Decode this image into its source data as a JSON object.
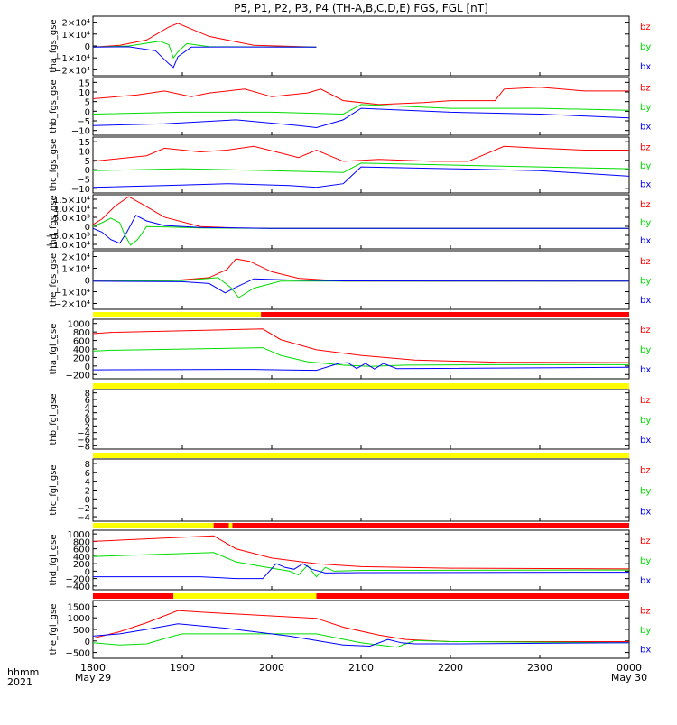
{
  "title": "P5, P1, P2, P3, P4 (TH-A,B,C,D,E) FGS, FGL [nT]",
  "colors": {
    "bz": "#ff0000",
    "by": "#00dd00",
    "bx": "#0000ff",
    "axis": "#000000",
    "bar_yellow": "#ffff00",
    "bar_red": "#ff0000"
  },
  "footer": {
    "hhmm": "hhmm",
    "year": "2021"
  },
  "chart_data": {
    "type": "line",
    "x_axis": {
      "label": "hhmm",
      "tick_labels": [
        "1800",
        "1900",
        "2000",
        "2100",
        "2200",
        "2300",
        "0000"
      ],
      "date_labels": [
        "May 29",
        "May 30"
      ],
      "range_hhmm": [
        "1800",
        "0000"
      ]
    },
    "legend_entries": [
      "bz",
      "by",
      "bx"
    ],
    "panels": [
      {
        "ylabel": "tha_fgs_gse",
        "ticks": [
          "2×10⁴",
          "1×10⁴",
          "0",
          "−1×10⁴",
          "−2×10⁴"
        ],
        "ylim": [
          -24000,
          26000
        ],
        "series": [
          {
            "name": "bz",
            "x": [
              0,
              0.3,
              0.6,
              0.85,
              0.95,
              1.3,
              1.8,
              2.5
            ],
            "y": [
              0,
              1500,
              6000,
              17000,
              20000,
              9000,
              1500,
              0
            ]
          },
          {
            "name": "by",
            "x": [
              0,
              0.4,
              0.75,
              0.85,
              0.9,
              0.95,
              1.05,
              1.3,
              2.5
            ],
            "y": [
              0,
              1000,
              5000,
              2000,
              -9000,
              -4000,
              3000,
              500,
              0
            ]
          },
          {
            "name": "bx",
            "x": [
              0,
              0.4,
              0.7,
              0.85,
              0.9,
              0.95,
              1.1,
              1.5,
              2.5
            ],
            "y": [
              0,
              300,
              -3000,
              -14000,
              -17000,
              -8000,
              0,
              200,
              0
            ]
          }
        ]
      },
      {
        "ylabel": "thb_fgs_gse",
        "ticks": [
          "15",
          "10",
          "5",
          "0",
          "−5",
          "−10"
        ],
        "ylim": [
          -14,
          16
        ],
        "series": [
          {
            "name": "bz",
            "x": [
              0,
              0.5,
              0.8,
              1.1,
              1.3,
              1.7,
              2.0,
              2.4,
              2.55,
              2.8,
              3.2,
              3.7,
              4.0,
              4.5,
              4.6,
              5.0,
              5.5,
              6.0
            ],
            "y": [
              5,
              7,
              9,
              6,
              8,
              10,
              6,
              8,
              10,
              4,
              2,
              3,
              4,
              4,
              10,
              11,
              9,
              9
            ]
          },
          {
            "name": "by",
            "x": [
              0,
              1.0,
              2.0,
              2.8,
              3.0,
              4.0,
              5.0,
              6.0
            ],
            "y": [
              -3,
              -2,
              -2,
              -3,
              2,
              0,
              0,
              -1
            ]
          },
          {
            "name": "bx",
            "x": [
              0,
              0.8,
              1.6,
              2.3,
              2.5,
              2.8,
              3.0,
              4.0,
              5.0,
              6.0
            ],
            "y": [
              -9,
              -8,
              -6,
              -9,
              -10,
              -6,
              0,
              -2,
              -3,
              -5
            ]
          }
        ]
      },
      {
        "ylabel": "thc_fgs_gse",
        "ticks": [
          "15",
          "10",
          "5",
          "0",
          "−5",
          "−10"
        ],
        "ylim": [
          -14,
          16
        ],
        "series": [
          {
            "name": "bz",
            "x": [
              0,
              0.6,
              0.8,
              1.2,
              1.5,
              1.8,
              2.3,
              2.5,
              2.8,
              3.2,
              3.8,
              4.2,
              4.6,
              5.0,
              5.5,
              6.0
            ],
            "y": [
              3,
              6,
              10,
              8,
              9,
              11,
              5,
              9,
              3,
              4,
              3,
              3,
              11,
              10,
              9,
              9
            ]
          },
          {
            "name": "by",
            "x": [
              0,
              1.0,
              2.0,
              2.8,
              3.0,
              4.0,
              5.0,
              6.0
            ],
            "y": [
              -2,
              -1,
              -2,
              -3,
              2,
              1,
              0,
              -1
            ]
          },
          {
            "name": "bx",
            "x": [
              0,
              0.8,
              1.5,
              2.2,
              2.5,
              2.8,
              3.0,
              4.0,
              5.0,
              6.0
            ],
            "y": [
              -11,
              -10,
              -9,
              -10,
              -11,
              -9,
              0,
              -1,
              -2,
              -5
            ]
          }
        ]
      },
      {
        "ylabel": "thd_fgs_gse",
        "ticks": [
          "1.5×10⁴",
          "1.0×10⁴",
          "5.0×10³",
          "0",
          "−5.0×10³",
          "−1.0×10⁴"
        ],
        "ylim": [
          -11000,
          18000
        ],
        "series": [
          {
            "name": "bz",
            "x": [
              0,
              0.1,
              0.25,
              0.4,
              0.55,
              0.8,
              1.2,
              1.6,
              2.0,
              2.4,
              6.0
            ],
            "y": [
              2000,
              5000,
              12000,
              17000,
              13000,
              6000,
              1000,
              200,
              0,
              0,
              0
            ]
          },
          {
            "name": "by",
            "x": [
              0,
              0.1,
              0.2,
              0.3,
              0.35,
              0.42,
              0.5,
              0.6,
              0.8,
              1.2,
              2.0,
              6.0
            ],
            "y": [
              1000,
              3000,
              5500,
              3000,
              -3000,
              -9000,
              -6000,
              1000,
              800,
              200,
              0,
              0
            ]
          },
          {
            "name": "bx",
            "x": [
              0,
              0.1,
              0.2,
              0.3,
              0.38,
              0.48,
              0.6,
              0.8,
              1.2,
              2.0,
              6.0
            ],
            "y": [
              0,
              -2000,
              -6000,
              -8000,
              -2000,
              7000,
              4000,
              1500,
              500,
              0,
              0
            ]
          }
        ]
      },
      {
        "ylabel": "the_fgs_gse",
        "ticks": [
          "2×10⁴",
          "1×10⁴",
          "0",
          "−1×10⁴",
          "−2×10⁴"
        ],
        "ylim": [
          -24000,
          26000
        ],
        "series": [
          {
            "name": "bz",
            "x": [
              0,
              0.9,
              1.3,
              1.5,
              1.6,
              1.75,
              2.0,
              2.3,
              2.8,
              6.0
            ],
            "y": [
              0,
              500,
              3000,
              10000,
              19000,
              17000,
              8000,
              2500,
              0,
              0
            ]
          },
          {
            "name": "by",
            "x": [
              0,
              1.0,
              1.4,
              1.55,
              1.63,
              1.8,
              2.1,
              2.8,
              6.0
            ],
            "y": [
              0,
              500,
              3000,
              -6000,
              -14000,
              -6000,
              0,
              0,
              0
            ]
          },
          {
            "name": "bx",
            "x": [
              0,
              1.0,
              1.3,
              1.48,
              1.58,
              1.8,
              2.2,
              2.8,
              6.0
            ],
            "y": [
              0,
              -500,
              -2000,
              -10000,
              -6000,
              2000,
              1000,
              200,
              0
            ]
          }
        ]
      },
      {
        "ylabel": "tha_fgl_gse",
        "ticks": [
          "1000",
          "800",
          "600",
          "400",
          "200",
          "0",
          "−200"
        ],
        "ylim": [
          -300,
          1100
        ],
        "quality_bar": [
          {
            "from": 0,
            "to": 1.88,
            "color": "yellow"
          },
          {
            "from": 1.88,
            "to": 6.0,
            "color": "red"
          }
        ],
        "series": [
          {
            "name": "bz",
            "x": [
              0,
              0.2,
              1.9,
              2.1,
              2.5,
              3.0,
              3.6,
              4.5,
              6.0
            ],
            "y": [
              760,
              790,
              870,
              620,
              380,
              250,
              140,
              90,
              80
            ]
          },
          {
            "name": "by",
            "x": [
              0,
              0.2,
              1.9,
              2.1,
              2.4,
              2.8,
              3.1,
              3.5,
              4.5,
              6.0
            ],
            "y": [
              350,
              370,
              430,
              250,
              100,
              20,
              -10,
              20,
              30,
              30
            ]
          },
          {
            "name": "bx",
            "x": [
              0,
              1.8,
              2.1,
              2.5,
              2.75,
              2.85,
              2.95,
              3.05,
              3.15,
              3.25,
              3.4,
              6.0
            ],
            "y": [
              -90,
              -80,
              -90,
              -100,
              60,
              80,
              -60,
              60,
              -70,
              60,
              -60,
              -30
            ]
          }
        ]
      },
      {
        "ylabel": "thb_fgl_gse",
        "ticks": [
          "8",
          "6",
          "4",
          "2",
          "0",
          "−2",
          "−4",
          "−6",
          "−8"
        ],
        "ylim": [
          -9,
          9
        ],
        "quality_bar": [
          {
            "from": 0,
            "to": 6.0,
            "color": "yellow"
          }
        ],
        "series": []
      },
      {
        "ylabel": "thc_fgl_gse",
        "ticks": [
          "8",
          "6",
          "4",
          "2",
          "0",
          "−2",
          "−4"
        ],
        "ylim": [
          -5,
          9
        ],
        "quality_bar": [
          {
            "from": 0,
            "to": 6.0,
            "color": "yellow"
          }
        ],
        "series": []
      },
      {
        "ylabel": "thd_fgl_gse",
        "ticks": [
          "1000",
          "800",
          "600",
          "400",
          "200",
          "0",
          "−200",
          "−400"
        ],
        "ylim": [
          -500,
          1100
        ],
        "quality_bar": [
          {
            "from": 0,
            "to": 1.35,
            "color": "yellow"
          },
          {
            "from": 1.35,
            "to": 1.52,
            "color": "red"
          },
          {
            "from": 1.52,
            "to": 1.56,
            "color": "yellow"
          },
          {
            "from": 1.56,
            "to": 6.0,
            "color": "red"
          }
        ],
        "series": [
          {
            "name": "bz",
            "x": [
              0,
              0.2,
              1.35,
              1.6,
              2.0,
              2.5,
              3.0,
              4.0,
              6.0
            ],
            "y": [
              800,
              820,
              950,
              600,
              350,
              200,
              120,
              80,
              60
            ]
          },
          {
            "name": "by",
            "x": [
              0,
              0.2,
              1.35,
              1.6,
              1.9,
              2.2,
              2.3,
              2.4,
              2.5,
              2.6,
              2.7,
              3.0,
              6.0
            ],
            "y": [
              390,
              410,
              500,
              250,
              120,
              0,
              -100,
              150,
              -150,
              100,
              0,
              20,
              30
            ]
          },
          {
            "name": "bx",
            "x": [
              0,
              1.2,
              1.6,
              1.9,
              2.05,
              2.15,
              2.25,
              2.35,
              2.45,
              2.6,
              3.0,
              6.0
            ],
            "y": [
              -150,
              -150,
              -200,
              -200,
              200,
              100,
              50,
              200,
              50,
              -50,
              -40,
              -30
            ]
          }
        ]
      },
      {
        "ylabel": "the_fgl_gse",
        "ticks": [
          "1500",
          "1000",
          "500",
          "0",
          "−500"
        ],
        "ylim": [
          -700,
          1900
        ],
        "quality_bar": [
          {
            "from": 0,
            "to": 0.9,
            "color": "red"
          },
          {
            "from": 0.9,
            "to": 2.5,
            "color": "yellow"
          },
          {
            "from": 2.5,
            "to": 6.0,
            "color": "red"
          }
        ],
        "series": [
          {
            "name": "bz",
            "x": [
              0,
              0.3,
              0.6,
              0.95,
              1.2,
              2.5,
              2.8,
              3.2,
              3.5,
              4.0,
              5.0,
              6.0
            ],
            "y": [
              200,
              500,
              900,
              1450,
              1380,
              1100,
              700,
              350,
              150,
              50,
              50,
              50
            ]
          },
          {
            "name": "by",
            "x": [
              0,
              0.3,
              0.6,
              0.9,
              1.0,
              2.5,
              3.0,
              3.2,
              3.4,
              3.6,
              4.0,
              6.0
            ],
            "y": [
              0,
              -100,
              -50,
              300,
              400,
              400,
              0,
              -100,
              -200,
              100,
              50,
              0
            ]
          },
          {
            "name": "bx",
            "x": [
              0,
              0.3,
              0.6,
              0.95,
              1.5,
              2.2,
              2.8,
              3.1,
              3.3,
              3.45,
              3.6,
              4.0,
              6.0
            ],
            "y": [
              300,
              400,
              600,
              850,
              650,
              300,
              -100,
              -150,
              150,
              0,
              -50,
              -50,
              0
            ]
          }
        ]
      }
    ]
  }
}
